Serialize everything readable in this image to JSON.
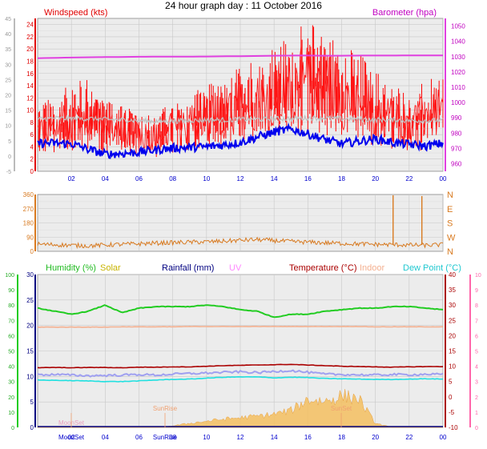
{
  "page": {
    "title": "24 hour graph day : 11 October 2016"
  },
  "colors": {
    "wind": "#ff1a1a",
    "gust": "#ff0000",
    "avg": "#c0c0c0",
    "windLow": "#0000ee",
    "baro": "#e040e0",
    "dir": "#d87a20",
    "humidity": "#22cc22",
    "solar": "#c8b400",
    "rain": "#000080",
    "uv": "#ff88ff",
    "temp": "#aa0000",
    "indoor": "#f4b090",
    "dew": "#20e0e0",
    "tick": "#0000cc",
    "grid": "#c8c8c8",
    "bg": "#ececec"
  },
  "chart_data": [
    {
      "id": "wind",
      "type": "line",
      "x_ticks": [
        "02",
        "04",
        "06",
        "08",
        "10",
        "12",
        "14",
        "16",
        "18",
        "20",
        "22",
        "00"
      ],
      "left_axis": {
        "label": "Windspeed (kts)",
        "ticks": [
          0,
          2,
          4,
          6,
          8,
          10,
          12,
          14,
          16,
          18,
          20,
          22,
          24
        ],
        "ylim": [
          0,
          25
        ]
      },
      "outer_left_axis": {
        "ticks": [
          -5,
          0,
          5,
          10,
          15,
          20,
          25,
          30,
          35,
          40,
          45
        ]
      },
      "right_axis": {
        "label": "Barometer (hpa)",
        "ticks": [
          960,
          970,
          980,
          990,
          1000,
          1010,
          1020,
          1030,
          1040,
          1050
        ],
        "ylim": [
          955,
          1055
        ]
      },
      "series": [
        {
          "name": "Windspeed (kts)",
          "axis": "left",
          "values": [
            6.5,
            7.2,
            8.5,
            9.1,
            7.4,
            6.8,
            6.2,
            5.5,
            6.9,
            7.6,
            8.8,
            8.4,
            10.5,
            11.2,
            12.2,
            13.5,
            14.5,
            13.8,
            12.4,
            11.6,
            9.8,
            8.5,
            7.9,
            8.7,
            9.4
          ]
        },
        {
          "name": "avg",
          "axis": "left",
          "values": [
            8.5,
            8.7,
            8.6,
            8.6,
            8.5,
            8.4,
            8.3,
            8.2,
            8.2,
            8.3,
            8.4,
            8.4,
            8.5,
            8.5,
            8.6,
            8.6,
            8.7,
            8.7,
            8.6,
            8.5,
            8.4,
            8.4,
            8.3,
            8.3,
            8.3
          ]
        },
        {
          "name": "low",
          "axis": "left",
          "values": [
            4.6,
            4.6,
            4.5,
            3.6,
            2.8,
            2.9,
            3.1,
            3.5,
            3.8,
            3.9,
            4.0,
            4.3,
            4.7,
            5.6,
            6.4,
            6.9,
            6.1,
            5.2,
            4.5,
            4.9,
            5.3,
            4.7,
            4.4,
            4.1,
            4.6
          ]
        },
        {
          "name": "Barometer (hpa)",
          "axis": "right",
          "values": [
            1029,
            1029.2,
            1029.4,
            1029.6,
            1029.7,
            1029.8,
            1029.9,
            1030,
            1030,
            1030,
            1030.1,
            1030.2,
            1030.3,
            1030.4,
            1030.6,
            1030.7,
            1030.7,
            1030.6,
            1030.6,
            1030.7,
            1030.7,
            1030.7,
            1030.8,
            1030.8,
            1030.8
          ]
        }
      ]
    },
    {
      "id": "direction",
      "type": "line",
      "x_ticks": [
        "02",
        "04",
        "06",
        "08",
        "10",
        "12",
        "14",
        "16",
        "18",
        "20",
        "22",
        "00"
      ],
      "left_axis": {
        "ticks": [
          0,
          90,
          180,
          270,
          360
        ],
        "ylim": [
          0,
          360
        ]
      },
      "right_axis": {
        "ticks": [
          "N",
          "E",
          "S",
          "W",
          "N"
        ]
      },
      "series": [
        {
          "name": "direction",
          "values": [
            45,
            42,
            38,
            35,
            40,
            44,
            48,
            52,
            55,
            58,
            60,
            64,
            70,
            74,
            68,
            62,
            58,
            54,
            50,
            47,
            44,
            42,
            40,
            38,
            42
          ],
          "spikes": [
            {
              "x": 0.877,
              "value": 355
            },
            {
              "x": 0.948,
              "value": 350
            }
          ]
        }
      ]
    },
    {
      "id": "multi",
      "type": "line",
      "x_ticks": [
        "02",
        "04",
        "06",
        "08",
        "10",
        "12",
        "14",
        "16",
        "18",
        "20",
        "22",
        "00"
      ],
      "headers": [
        "Humidity (%)",
        "Solar",
        "Rainfall (mm)",
        "UV",
        "Temperature (°C)",
        "Indoor",
        "Dew Point (°C)"
      ],
      "axis_left_outer": {
        "ticks": [
          0,
          10,
          20,
          30,
          40,
          50,
          60,
          70,
          80,
          90,
          100
        ]
      },
      "axis_left_inner": {
        "ticks": [
          0,
          5,
          10,
          15,
          20,
          25,
          30
        ]
      },
      "axis_right_inner": {
        "ticks": [
          -10,
          -5,
          0,
          5,
          10,
          15,
          20,
          25,
          30,
          35,
          40
        ]
      },
      "axis_right_outer": {
        "ticks": [
          0,
          1,
          2,
          3,
          4,
          5,
          6,
          7,
          8,
          9,
          10
        ]
      },
      "annotations": [
        "MoonSet",
        "MoonSet",
        "SunRise",
        "SunRise",
        "SunSet"
      ],
      "series": [
        {
          "name": "Humidity (%)",
          "range": [
            0,
            100
          ],
          "values": [
            78,
            76,
            74,
            76,
            80,
            75,
            78,
            79,
            79,
            79,
            80,
            79,
            77,
            76,
            72,
            74,
            74,
            76,
            77,
            78,
            78,
            79,
            79,
            78,
            77
          ]
        },
        {
          "name": "Indoor",
          "range": [
            -10,
            40
          ],
          "values": [
            22.8,
            22.8,
            22.8,
            22.8,
            22.8,
            22.9,
            22.9,
            22.9,
            22.9,
            23,
            23,
            23,
            23,
            23,
            23,
            23,
            23,
            23,
            23,
            23,
            22.9,
            22.9,
            22.9,
            22.9,
            22.9
          ]
        },
        {
          "name": "Temperature (°C)",
          "range": [
            -10,
            40
          ],
          "values": [
            9.5,
            9.6,
            9.5,
            9.6,
            9.6,
            9.5,
            9.7,
            9.7,
            9.8,
            9.8,
            10,
            10.2,
            10.3,
            10.4,
            10.5,
            10.6,
            10.4,
            10.2,
            10,
            9.9,
            9.8,
            9.7,
            9.8,
            9.9,
            9.9
          ]
        },
        {
          "name": "temperature_feels",
          "range": [
            -10,
            40
          ],
          "values": [
            7.2,
            7.3,
            7.1,
            6.9,
            7,
            7.1,
            7.3,
            7.1,
            7.4,
            7.6,
            7.8,
            8,
            8.2,
            7.9,
            8.3,
            8.6,
            8,
            7.4,
            7.3,
            7.2,
            7.1,
            7.3,
            7.2,
            7.4,
            7.3
          ]
        },
        {
          "name": "Dew Point (°C)",
          "range": [
            -10,
            40
          ],
          "values": [
            5.5,
            5.4,
            5.3,
            5.2,
            5,
            5,
            5.2,
            5.5,
            5.7,
            5.8,
            6.1,
            6.4,
            6.5,
            6.5,
            6.2,
            6.4,
            6.3,
            6,
            5.9,
            5.8,
            5.7,
            5.7,
            5.8,
            5.9,
            5.8
          ]
        },
        {
          "name": "Solar",
          "range": [
            0,
            30
          ],
          "values": [
            0,
            0,
            0,
            0,
            0,
            0,
            0,
            0,
            0.3,
            0.8,
            1.2,
            1.6,
            1.9,
            2.2,
            2.6,
            3.3,
            5.5,
            5.1,
            6.2,
            5.7,
            0.8,
            0,
            0,
            0,
            0
          ]
        }
      ]
    }
  ]
}
